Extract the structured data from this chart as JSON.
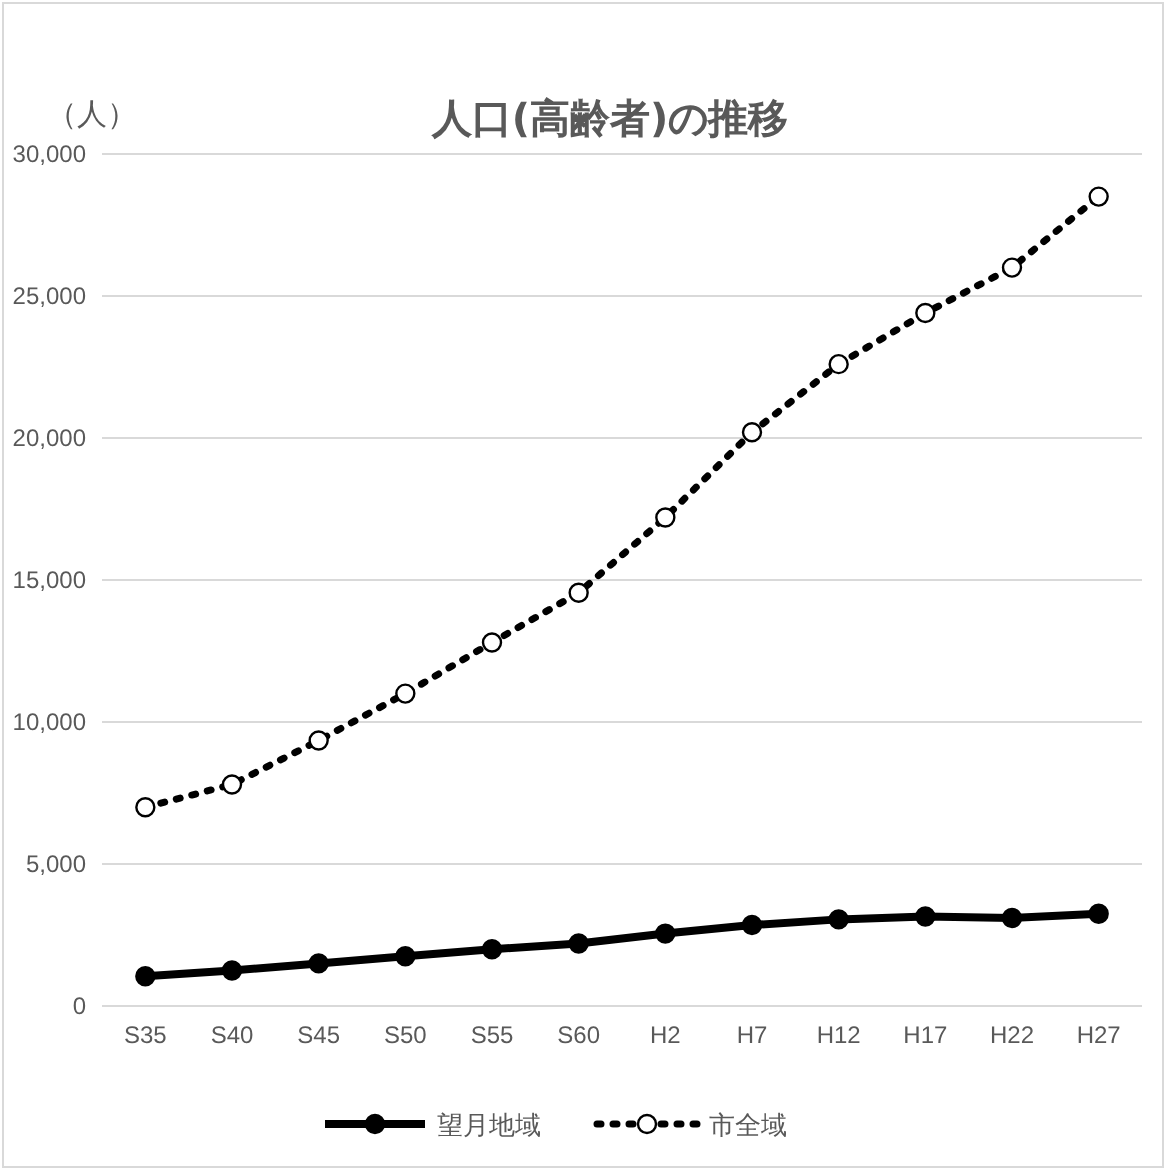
{
  "chart_data": {
    "type": "line",
    "title": "人口(高齢者)の推移",
    "ylabel": "（人）",
    "categories": [
      "S35",
      "S40",
      "S45",
      "S50",
      "S55",
      "S60",
      "H2",
      "H7",
      "H12",
      "H17",
      "H22",
      "H27"
    ],
    "ylim": [
      0,
      30000
    ],
    "yticks": [
      {
        "value": 0,
        "label": "0"
      },
      {
        "value": 5000,
        "label": "5,000"
      },
      {
        "value": 10000,
        "label": "10,000"
      },
      {
        "value": 15000,
        "label": "15,000"
      },
      {
        "value": 20000,
        "label": "20,000"
      },
      {
        "value": 25000,
        "label": "25,000"
      },
      {
        "value": 30000,
        "label": "30,000"
      }
    ],
    "grid": "y",
    "legend": "bottom",
    "marker": "circle",
    "series": [
      {
        "name": "望月地域",
        "color": "#000000",
        "line_style": "solid",
        "values": [
          1050,
          1250,
          1500,
          1750,
          2000,
          2200,
          2550,
          2850,
          3050,
          3150,
          3100,
          3250
        ]
      },
      {
        "name": "市全域",
        "color": "#000000",
        "line_style": "dotted",
        "values": [
          7000,
          7800,
          9350,
          11000,
          12800,
          14550,
          17200,
          20200,
          22600,
          24400,
          26000,
          28500
        ]
      }
    ]
  }
}
